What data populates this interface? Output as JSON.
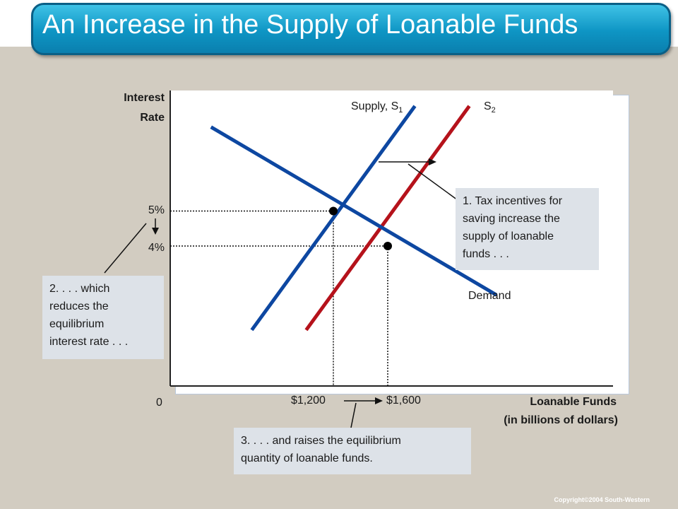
{
  "title": "An Increase in the Supply of Loanable Funds",
  "copyright": "Copyright©2004 South-Western",
  "chart_data": {
    "type": "line",
    "ylabel_line1": "Interest",
    "ylabel_line2": "Rate",
    "xlabel_line1": "Loanable Funds",
    "xlabel_line2": "(in billions of dollars)",
    "origin_label": "0",
    "y_ticks": [
      "5%",
      "4%"
    ],
    "x_ticks": [
      "$1,200",
      "$1,600"
    ],
    "series": [
      {
        "name": "Supply, S",
        "subscript": "1",
        "color": "#0d47a1",
        "x": [
          600,
          1800
        ],
        "y": [
          1.6,
          8.0
        ]
      },
      {
        "name": "S",
        "subscript": "2",
        "color": "#b5121b",
        "x": [
          1000,
          2200
        ],
        "y": [
          1.6,
          8.0
        ]
      },
      {
        "name": "Demand",
        "color": "#0d47a1",
        "x": [
          300,
          2400
        ],
        "y": [
          7.4,
          2.6
        ]
      }
    ],
    "equilibria": [
      {
        "x": 1200,
        "y": 5
      },
      {
        "x": 1600,
        "y": 4
      }
    ],
    "annotations": [
      "1. Tax incentives for saving increase the supply of loanable funds . . .",
      "2. . . . which reduces the equilibrium interest rate . . .",
      "3. . . . and raises the equilibrium quantity of loanable funds."
    ]
  },
  "notes": {
    "note1": [
      "1. Tax incentives for",
      "saving increase the",
      "supply of loanable",
      "funds . . ."
    ],
    "note2": [
      "2. . . . which",
      "reduces the",
      "equilibrium",
      "interest rate . . ."
    ],
    "note3": [
      "3. . . . and raises the equilibrium",
      "quantity of loanable funds."
    ]
  }
}
